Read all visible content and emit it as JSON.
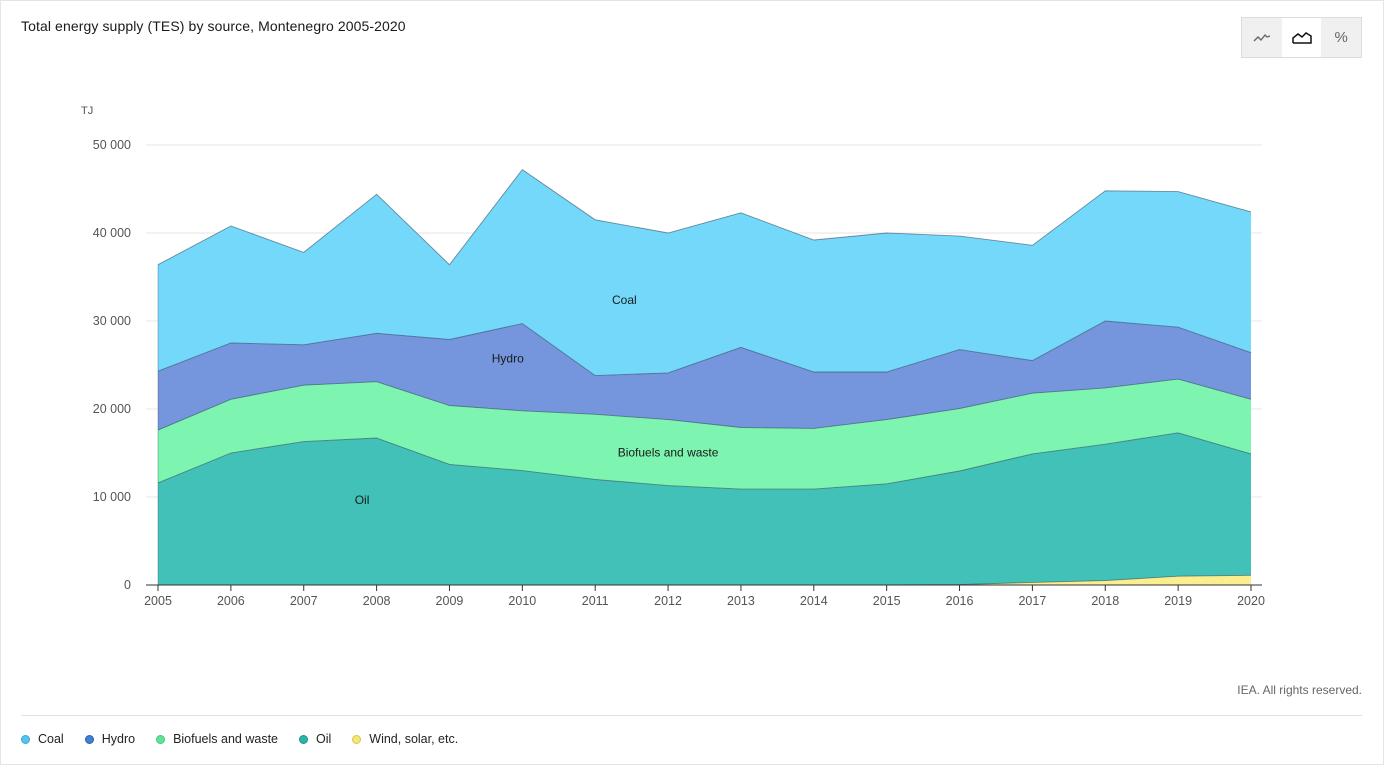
{
  "title": "Total energy supply (TES) by source, Montenegro 2005-2020",
  "view_toggle": {
    "options": [
      {
        "name": "line",
        "icon": "line-chart-icon"
      },
      {
        "name": "area",
        "icon": "area-chart-icon",
        "active": true
      },
      {
        "name": "percent",
        "icon": "percent-icon",
        "glyph": "%"
      }
    ]
  },
  "copyright": "IEA. All rights reserved.",
  "colors": {
    "coal": "#73d8fa",
    "hydro": "#7595dc",
    "biofuels": "#7df5b0",
    "oil": "#41c1b7",
    "wind": "#fbee8f"
  },
  "legend": [
    {
      "label": "Coal",
      "color": "#58c4ee",
      "border": "#3aa8d8"
    },
    {
      "label": "Hydro",
      "color": "#3f7fd4",
      "border": "#2a62b0"
    },
    {
      "label": "Biofuels and waste",
      "color": "#62e29a",
      "border": "#3fc77c"
    },
    {
      "label": "Oil",
      "color": "#2bb5aa",
      "border": "#1c9489"
    },
    {
      "label": "Wind, solar, etc.",
      "color": "#f5e57a",
      "border": "#d8c54a"
    }
  ],
  "chart_data": {
    "type": "area",
    "stacked": true,
    "unit_label": "TJ",
    "x": [
      "2005",
      "2006",
      "2007",
      "2008",
      "2009",
      "2010",
      "2011",
      "2012",
      "2013",
      "2014",
      "2015",
      "2016",
      "2017",
      "2018",
      "2019",
      "2020"
    ],
    "ylim": [
      0,
      50000
    ],
    "yticks": [
      0,
      10000,
      20000,
      30000,
      40000,
      50000
    ],
    "ytick_labels": [
      "0",
      "10 000",
      "20 000",
      "30 000",
      "40 000",
      "50 000"
    ],
    "grid": true,
    "series": [
      {
        "key": "wind",
        "name": "Wind, solar, etc.",
        "values": [
          0,
          0,
          0,
          0,
          0,
          0,
          0,
          0,
          0,
          0,
          0,
          50,
          300,
          500,
          1000,
          1100
        ]
      },
      {
        "key": "oil",
        "name": "Oil",
        "values": [
          11600,
          15000,
          16300,
          16700,
          13700,
          13000,
          12000,
          11300,
          10900,
          10900,
          11500,
          12900,
          14600,
          15500,
          16300,
          13800
        ]
      },
      {
        "key": "biofuels",
        "name": "Biofuels and waste",
        "values": [
          6000,
          6100,
          6400,
          6400,
          6700,
          6800,
          7400,
          7500,
          7000,
          6900,
          7300,
          7100,
          6900,
          6400,
          6100,
          6200
        ]
      },
      {
        "key": "hydro",
        "name": "Hydro",
        "values": [
          6700,
          6400,
          4600,
          5500,
          7500,
          9900,
          4400,
          5300,
          9100,
          6400,
          5400,
          6700,
          3700,
          7600,
          5900,
          5300
        ]
      },
      {
        "key": "coal",
        "name": "Coal",
        "values": [
          12100,
          13300,
          10500,
          15800,
          8500,
          17500,
          17700,
          15900,
          15300,
          15000,
          15800,
          12900,
          13100,
          14800,
          15400,
          16000
        ]
      }
    ],
    "labels": [
      "Coal",
      "Hydro",
      "Biofuels and waste",
      "Oil"
    ]
  }
}
